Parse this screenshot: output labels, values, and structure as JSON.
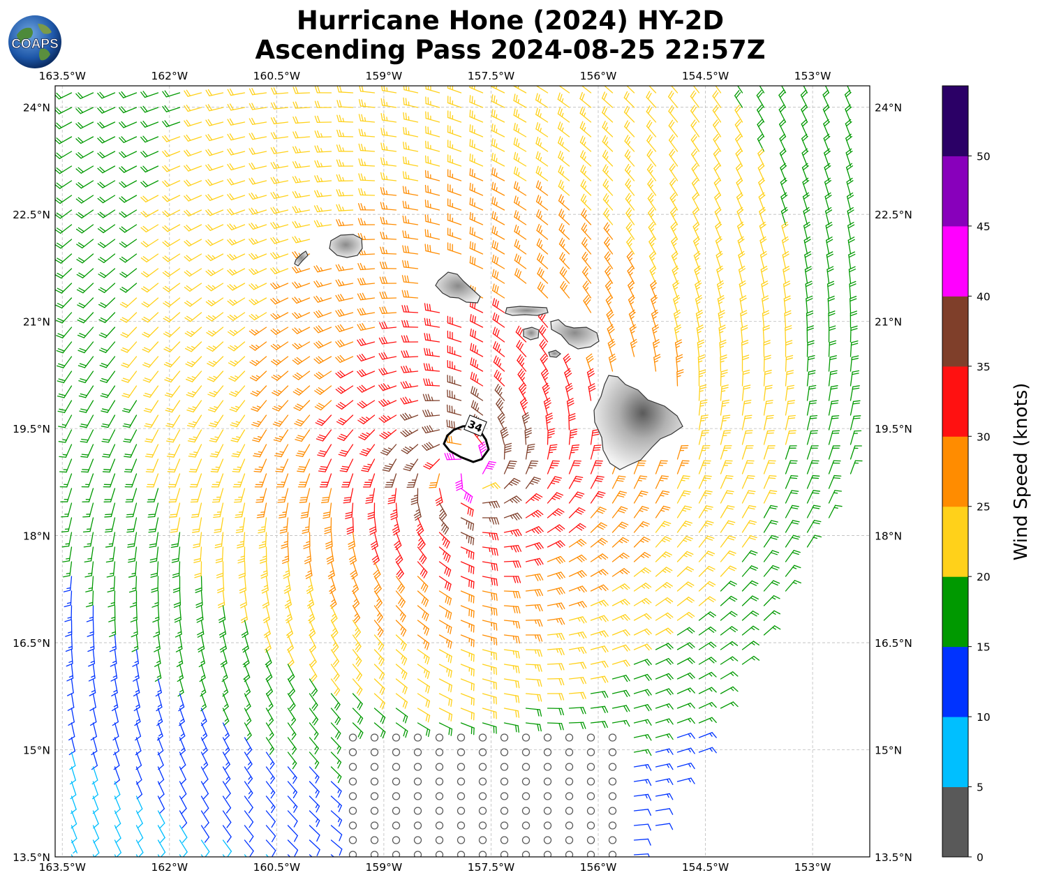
{
  "title": {
    "line1": "Hurricane Hone (2024) HY-2D",
    "line2": "Ascending Pass 2024-08-25 22:57Z"
  },
  "logo": {
    "text": "COAPS",
    "icon": "globe-logo-icon"
  },
  "map": {
    "lon_ticks": [
      "163.5°W",
      "162°W",
      "160.5°W",
      "159°W",
      "157.5°W",
      "156°W",
      "154.5°W",
      "153°W"
    ],
    "lat_ticks": [
      "24°N",
      "22.5°N",
      "21°N",
      "19.5°N",
      "18°N",
      "16.5°N",
      "15°N",
      "13.5°N"
    ],
    "lon_range": [
      -163.6,
      -152.2
    ],
    "lat_range": [
      13.5,
      24.3
    ],
    "grid": true,
    "contour_label": "34",
    "storm_center": {
      "lon": -157.85,
      "lat": 18.9
    },
    "islands": [
      "Niihau",
      "Kauai",
      "Oahu",
      "Molokai",
      "Lanai",
      "Maui",
      "Kahoolawe",
      "Hawaii"
    ]
  },
  "colorbar": {
    "label": "Wind Speed (knots)",
    "ticks": [
      "0",
      "5",
      "10",
      "15",
      "20",
      "25",
      "30",
      "35",
      "40",
      "45",
      "50"
    ],
    "bins": [
      {
        "min": 0,
        "max": 5,
        "color": "#595959"
      },
      {
        "min": 5,
        "max": 10,
        "color": "#00bfff"
      },
      {
        "min": 10,
        "max": 15,
        "color": "#0033ff"
      },
      {
        "min": 15,
        "max": 20,
        "color": "#009900"
      },
      {
        "min": 20,
        "max": 25,
        "color": "#ffd11a"
      },
      {
        "min": 25,
        "max": 30,
        "color": "#ff8c00"
      },
      {
        "min": 30,
        "max": 35,
        "color": "#ff1111"
      },
      {
        "min": 35,
        "max": 40,
        "color": "#7f3f2a"
      },
      {
        "min": 40,
        "max": 45,
        "color": "#ff00ff"
      },
      {
        "min": 45,
        "max": 50,
        "color": "#8800bb"
      },
      {
        "min": 50,
        "max": 55,
        "color": "#2b0066"
      }
    ]
  }
}
